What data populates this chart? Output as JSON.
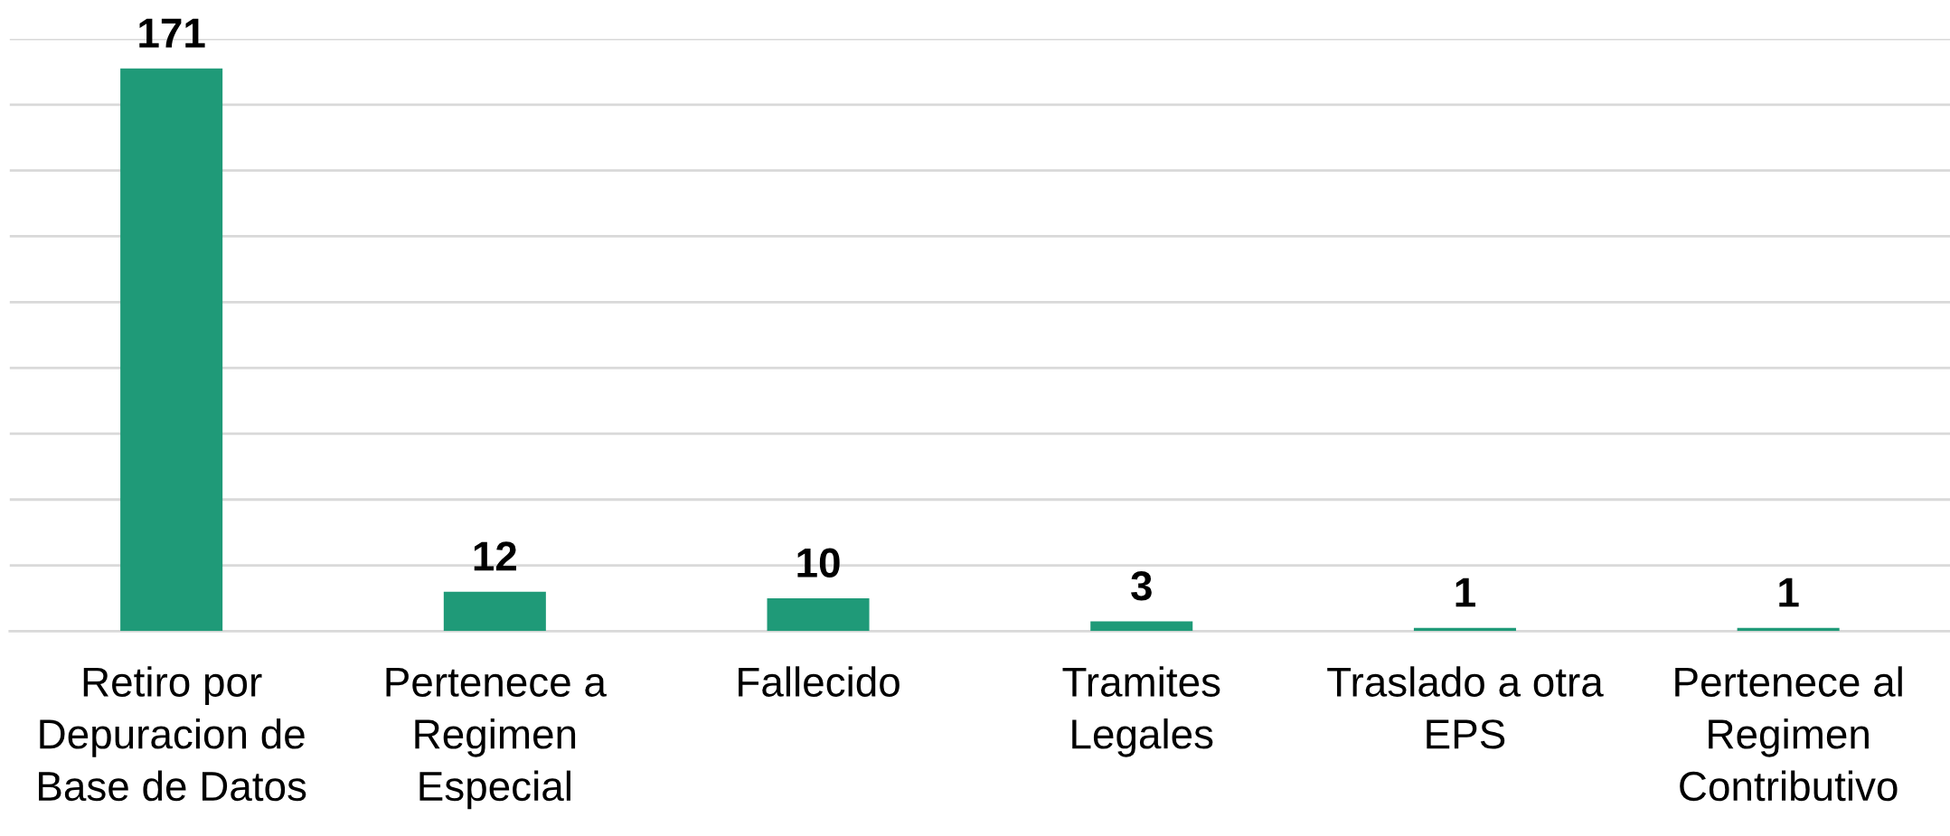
{
  "chart_data": {
    "type": "bar",
    "categories": [
      "Retiro por\nDepuracion de\nBase de Datos",
      "Pertenece a\nRegimen\nEspecial",
      "Fallecido",
      "Tramites\nLegales",
      "Traslado a otra\nEPS",
      "Pertenece al\nRegimen\nContributivo"
    ],
    "values": [
      171,
      12,
      10,
      3,
      1,
      1
    ],
    "color": "#1f9a78",
    "ylim": [
      0,
      180
    ],
    "yticks": [
      {
        "value": 0,
        "label": null
      },
      {
        "value": 20,
        "label": null
      },
      {
        "value": 40,
        "label": null
      },
      {
        "value": 60,
        "label": null
      },
      {
        "value": 80,
        "label": null
      },
      {
        "value": 100,
        "label": null
      },
      {
        "value": 120,
        "label": null
      },
      {
        "value": 140,
        "label": null
      },
      {
        "value": 160,
        "label": null
      },
      {
        "value": 180,
        "label": null
      }
    ],
    "grid": "y",
    "tick_labels": "x",
    "data_labels": true,
    "legend": false
  }
}
